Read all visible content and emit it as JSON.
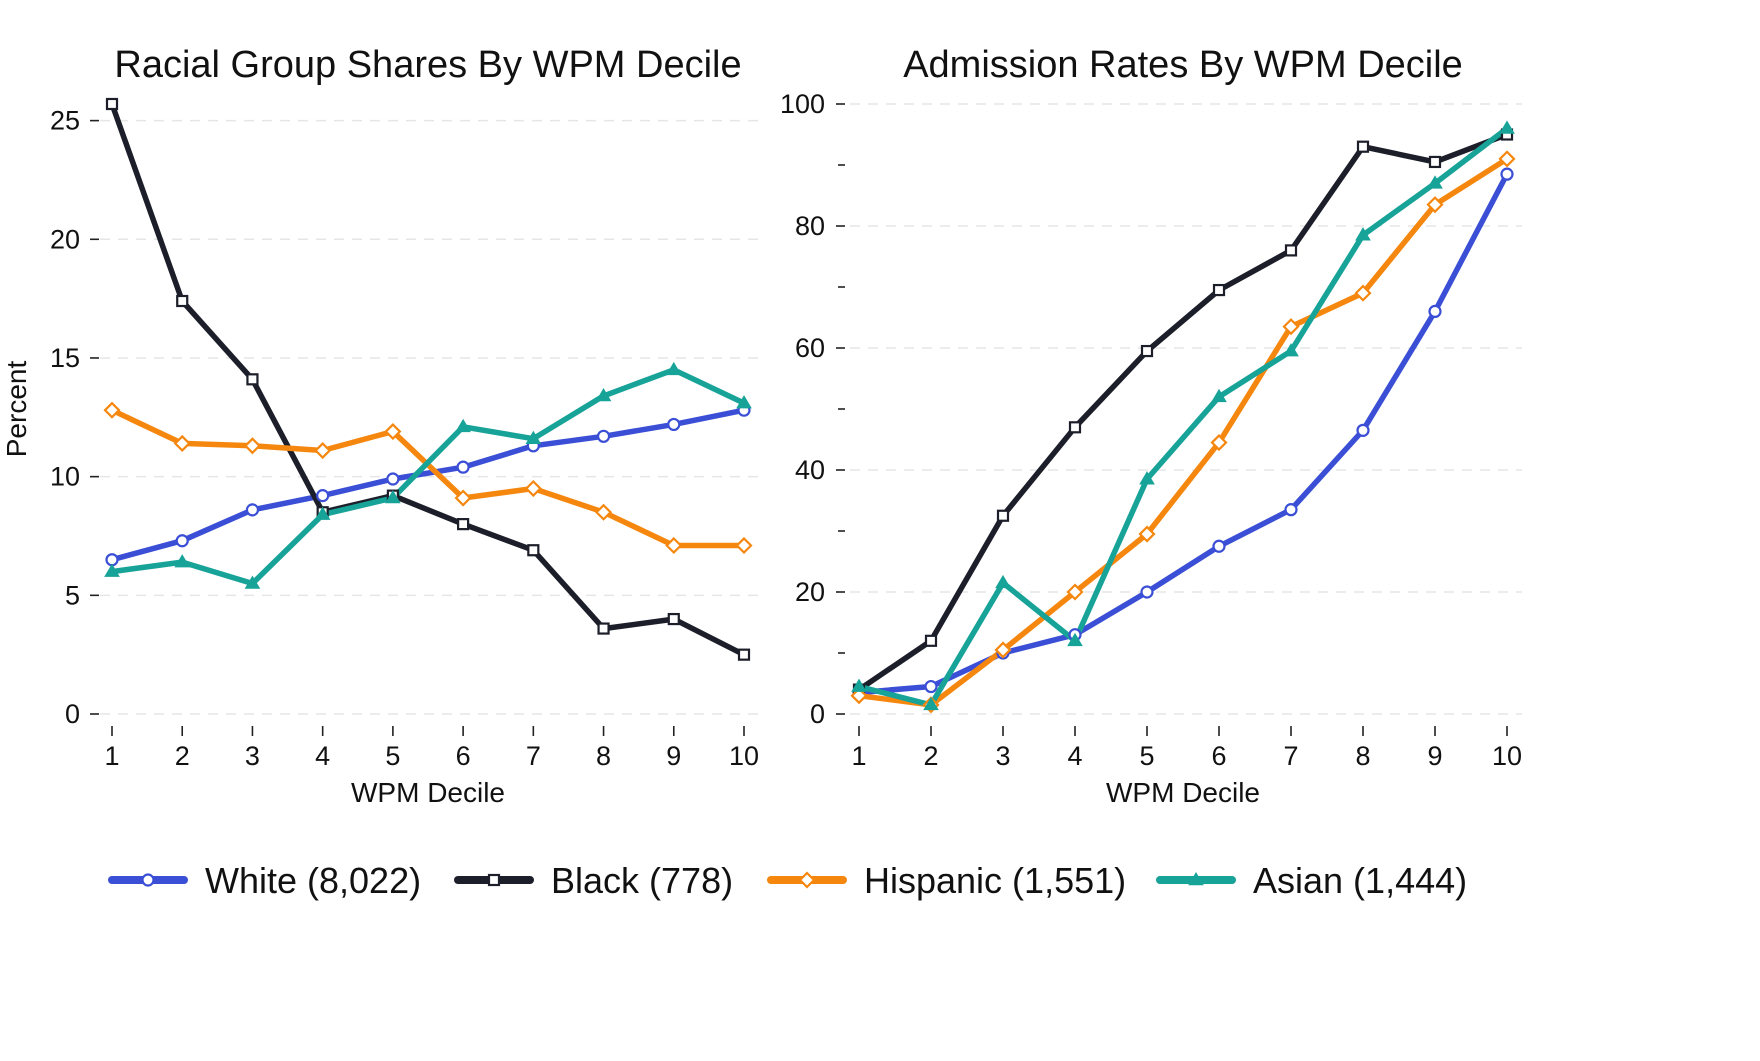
{
  "chart_data": [
    {
      "type": "line",
      "title": "Racial Group Shares By WPM Decile",
      "xlabel": "WPM Decile",
      "ylabel": "Percent",
      "x": [
        1,
        2,
        3,
        4,
        5,
        6,
        7,
        8,
        9,
        10
      ],
      "xticks": [
        "1",
        "2",
        "3",
        "4",
        "5",
        "6",
        "7",
        "8",
        "9",
        "10"
      ],
      "ylim": [
        0,
        26
      ],
      "yticks": [
        0,
        5,
        10,
        15,
        20,
        25
      ],
      "yminor": [],
      "grid": true,
      "series": [
        {
          "key": "white",
          "values": [
            6.5,
            7.3,
            8.6,
            9.2,
            9.9,
            10.4,
            11.3,
            11.7,
            12.2,
            12.8
          ]
        },
        {
          "key": "black",
          "values": [
            25.7,
            17.4,
            14.1,
            8.5,
            9.2,
            8.0,
            6.9,
            3.6,
            4.0,
            2.5
          ]
        },
        {
          "key": "hispanic",
          "values": [
            12.8,
            11.4,
            11.3,
            11.1,
            11.9,
            9.1,
            9.5,
            8.5,
            7.1,
            7.1
          ]
        },
        {
          "key": "asian",
          "values": [
            6.0,
            6.4,
            5.5,
            8.4,
            9.1,
            12.1,
            11.6,
            13.4,
            14.5,
            13.1
          ]
        }
      ]
    },
    {
      "type": "line",
      "title": "Admission Rates By WPM Decile",
      "xlabel": "WPM Decile",
      "ylabel": "",
      "x": [
        1,
        2,
        3,
        4,
        5,
        6,
        7,
        8,
        9,
        10
      ],
      "xticks": [
        "1",
        "2",
        "3",
        "4",
        "5",
        "6",
        "7",
        "8",
        "9",
        "10"
      ],
      "ylim": [
        0,
        100
      ],
      "yticks": [
        0,
        20,
        40,
        60,
        80,
        100
      ],
      "yminor": [
        10,
        30,
        50,
        70,
        90
      ],
      "grid": true,
      "series": [
        {
          "key": "white",
          "values": [
            3.5,
            4.5,
            10.0,
            13.0,
            20.0,
            27.5,
            33.5,
            46.5,
            66.0,
            88.5
          ]
        },
        {
          "key": "black",
          "values": [
            4.0,
            12.0,
            32.5,
            47.0,
            59.5,
            69.5,
            76.0,
            93.0,
            90.5,
            95.0
          ]
        },
        {
          "key": "hispanic",
          "values": [
            3.0,
            1.5,
            10.5,
            20.0,
            29.5,
            44.5,
            63.5,
            69.0,
            83.5,
            91.0
          ]
        },
        {
          "key": "asian",
          "values": [
            4.5,
            1.5,
            21.5,
            12.0,
            38.5,
            52.0,
            59.5,
            78.5,
            87.0,
            96.0
          ]
        }
      ]
    }
  ],
  "legend": {
    "placement": "bottom",
    "entries": [
      {
        "key": "white",
        "label": "White (8,022)",
        "color": "#3b4fd6",
        "marker": "circle"
      },
      {
        "key": "black",
        "label": "Black (778)",
        "color": "#1c1f2a",
        "marker": "square"
      },
      {
        "key": "hispanic",
        "label": "Hispanic (1,551)",
        "color": "#f5870f",
        "marker": "diamond"
      },
      {
        "key": "asian",
        "label": "Asian (1,444)",
        "color": "#17a398",
        "marker": "triangle"
      }
    ]
  }
}
